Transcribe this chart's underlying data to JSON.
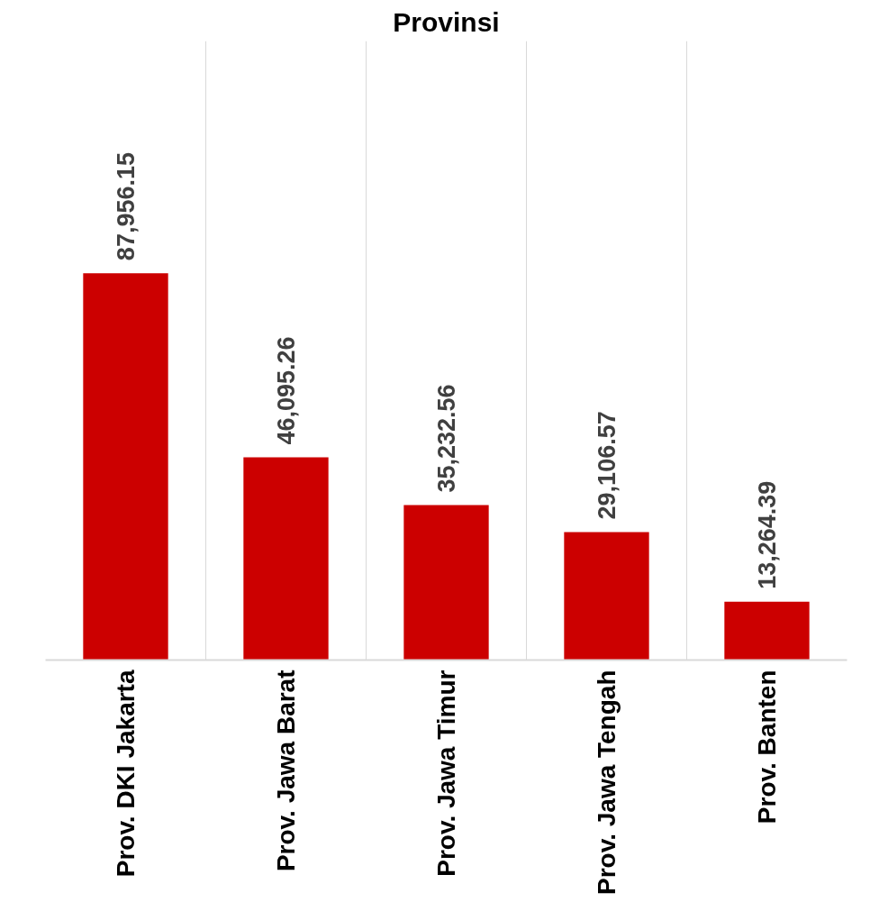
{
  "chart_data": {
    "type": "bar",
    "title": "Provinsi",
    "categories": [
      "Prov. DKI Jakarta",
      "Prov. Jawa Barat",
      "Prov. Jawa Timur",
      "Prov. Jawa Tengah",
      "Prov. Banten"
    ],
    "values": [
      87956.15,
      46095.26,
      35232.56,
      29106.57,
      13264.39
    ],
    "value_labels": [
      "87,956.15",
      "46,095.26",
      "35,232.56",
      "29,106.57",
      "13,264.39"
    ],
    "color": "#cc0000",
    "grid": "x"
  }
}
